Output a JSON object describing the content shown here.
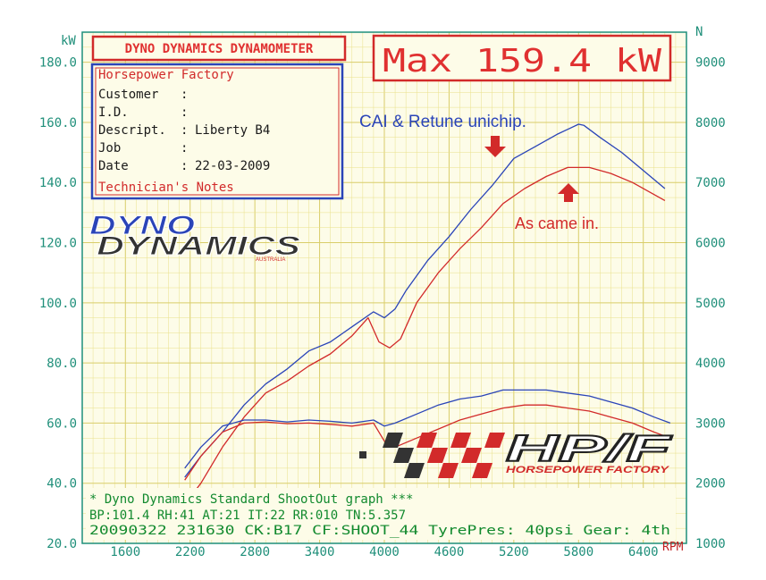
{
  "chart_data": {
    "type": "line",
    "title": "DYNO DYNAMICS DYNAMOMETER",
    "max_label": "Max 159.4 kW",
    "left_unit": "kW",
    "right_unit": "N",
    "x_unit": "RPM",
    "xlim": [
      1200,
      6800
    ],
    "ylim_left": [
      20,
      190
    ],
    "ylim_right": [
      1000,
      9500
    ],
    "x_ticks": [
      {
        "v": 1600,
        "t": "1600"
      },
      {
        "v": 2200,
        "t": "2200"
      },
      {
        "v": 2800,
        "t": "2800"
      },
      {
        "v": 3400,
        "t": "3400"
      },
      {
        "v": 4000,
        "t": "4000"
      },
      {
        "v": 4600,
        "t": "4600"
      },
      {
        "v": 5200,
        "t": "5200"
      },
      {
        "v": 5800,
        "t": "5800"
      },
      {
        "v": 6400,
        "t": "6400"
      }
    ],
    "y_left_ticks": [
      {
        "v": 20,
        "t": "20.0"
      },
      {
        "v": 40,
        "t": "40.0"
      },
      {
        "v": 60,
        "t": "60.0"
      },
      {
        "v": 80,
        "t": "80.0"
      },
      {
        "v": 100,
        "t": "100.0"
      },
      {
        "v": 120,
        "t": "120.0"
      },
      {
        "v": 140,
        "t": "140.0"
      },
      {
        "v": 160,
        "t": "160.0"
      },
      {
        "v": 180,
        "t": "180.0"
      }
    ],
    "y_right_ticks": [
      {
        "v": 1000,
        "t": "1000"
      },
      {
        "v": 2000,
        "t": "2000"
      },
      {
        "v": 3000,
        "t": "3000"
      },
      {
        "v": 4000,
        "t": "4000"
      },
      {
        "v": 5000,
        "t": "5000"
      },
      {
        "v": 6000,
        "t": "6000"
      },
      {
        "v": 7000,
        "t": "7000"
      },
      {
        "v": 8000,
        "t": "8000"
      },
      {
        "v": 9000,
        "t": "9000"
      }
    ],
    "series": [
      {
        "kind": "power",
        "color": "#2a44b8",
        "x": [
          2150,
          2300,
          2500,
          2700,
          2900,
          3100,
          3300,
          3500,
          3700,
          3900,
          4000,
          4100,
          4200,
          4400,
          4600,
          4800,
          5000,
          5200,
          5400,
          5600,
          5800,
          5850,
          6000,
          6200,
          6400,
          6600
        ],
        "y": [
          42,
          49,
          57,
          66,
          73,
          78,
          84,
          87,
          92,
          97,
          95,
          98,
          104,
          114,
          122,
          131,
          139,
          148,
          152,
          156,
          159.4,
          159,
          155,
          150,
          144,
          138
        ]
      },
      {
        "kind": "power",
        "color": "#d22a2a",
        "x": [
          2150,
          2300,
          2500,
          2700,
          2900,
          3100,
          3300,
          3500,
          3700,
          3850,
          3950,
          4050,
          4150,
          4300,
          4500,
          4700,
          4900,
          5100,
          5300,
          5500,
          5700,
          5900,
          6100,
          6300,
          6500,
          6600
        ],
        "y": [
          33,
          40,
          52,
          62,
          70,
          74,
          79,
          83,
          89,
          95,
          87,
          85,
          88,
          100,
          110,
          118,
          125,
          133,
          138,
          142,
          145,
          145,
          143,
          140,
          136,
          134
        ]
      },
      {
        "kind": "tractive",
        "color": "#2a44b8",
        "x": [
          2150,
          2300,
          2500,
          2700,
          2900,
          3100,
          3300,
          3500,
          3700,
          3900,
          4000,
          4100,
          4300,
          4500,
          4700,
          4900,
          5100,
          5300,
          5500,
          5700,
          5900,
          6100,
          6300,
          6500,
          6650
        ],
        "y": [
          2250,
          2600,
          2950,
          3050,
          3050,
          3020,
          3050,
          3030,
          3000,
          3050,
          2950,
          3000,
          3150,
          3300,
          3400,
          3450,
          3550,
          3550,
          3550,
          3500,
          3450,
          3350,
          3250,
          3100,
          3000
        ]
      },
      {
        "kind": "tractive",
        "color": "#d22a2a",
        "x": [
          2150,
          2300,
          2500,
          2700,
          2900,
          3100,
          3300,
          3500,
          3700,
          3900,
          4000,
          4100,
          4300,
          4500,
          4700,
          4900,
          5100,
          5300,
          5500,
          5700,
          5900,
          6100,
          6300,
          6500,
          6650
        ],
        "y": [
          2050,
          2450,
          2850,
          3000,
          3020,
          2990,
          3000,
          2980,
          2950,
          3000,
          2700,
          2600,
          2750,
          2900,
          3050,
          3150,
          3250,
          3300,
          3300,
          3250,
          3200,
          3100,
          3000,
          2850,
          2750
        ]
      }
    ],
    "annotations": {
      "blue": "CAI & Retune unichip.",
      "red": "As came in."
    },
    "info_box": {
      "company": "Horsepower Factory",
      "rows": [
        {
          "label": "Customer",
          "value": ""
        },
        {
          "label": "I.D.",
          "value": ""
        },
        {
          "label": "Descript.",
          "value": "Liberty B4"
        },
        {
          "label": "Job",
          "value": ""
        },
        {
          "label": "Date",
          "value": "22-03-2009"
        }
      ],
      "notes_label": "Technician's Notes"
    },
    "footer": {
      "line1": "* Dyno Dynamics Standard ShootOut graph ***",
      "line2": "BP:101.4 RH:41 AT:21 IT:22  RR:010 TN:5.357",
      "line3": "20090322 231630 CK:B17 CF:SHOOT_44 TyrePres: 40psi    Gear: 4th"
    },
    "logos": {
      "dyno_line1": "DYNO",
      "dyno_line2": "DYNAMICS",
      "dyno_sub": "AUSTRALIA",
      "hpf": "HP/F",
      "hpf_sub": "HORSEPOWER FACTORY"
    },
    "colors": {
      "axis_teal": "#1f8f7a",
      "grid_yellow": "#e9e08a",
      "frame_red": "#d22a2a",
      "frame_blue": "#2a44b8",
      "footer_green": "#128a2e",
      "title_red": "#e03030",
      "max_red": "#e03030"
    }
  }
}
